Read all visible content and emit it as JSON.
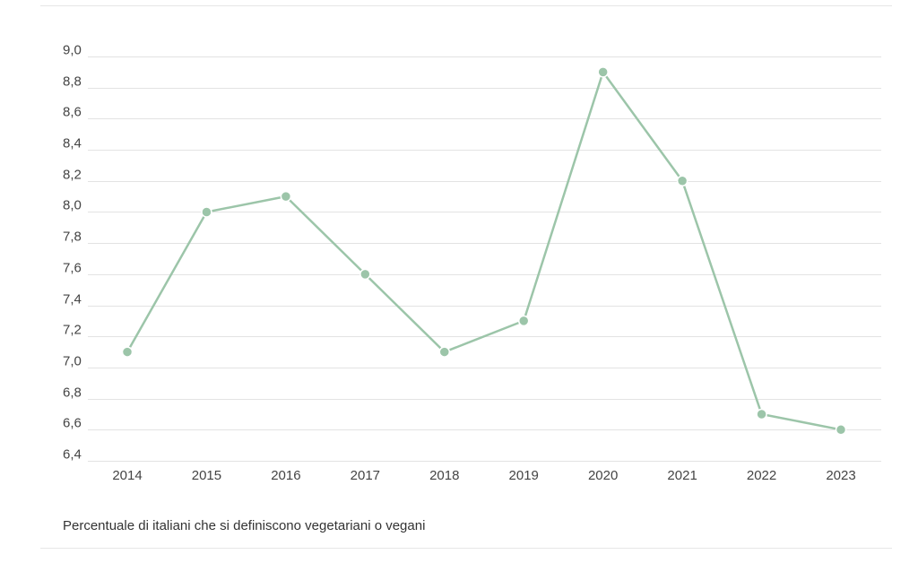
{
  "chart_data": {
    "type": "line",
    "title": "",
    "caption": "Percentuale di italiani che si definiscono vegetariani o vegani",
    "xlabel": "",
    "ylabel": "",
    "categories": [
      "2014",
      "2015",
      "2016",
      "2017",
      "2018",
      "2019",
      "2020",
      "2021",
      "2022",
      "2023"
    ],
    "series": [
      {
        "values": [
          7.1,
          8.0,
          8.1,
          7.6,
          7.1,
          7.3,
          8.9,
          8.2,
          6.7,
          6.6
        ]
      }
    ],
    "ylim": [
      6.4,
      9.0
    ],
    "yticks": [
      "6,4",
      "6,6",
      "6,8",
      "7,0",
      "7,2",
      "7,4",
      "7,6",
      "7,8",
      "8,0",
      "8,2",
      "8,4",
      "8,6",
      "8,8",
      "9,0"
    ],
    "grid": true,
    "legend": "none",
    "colors": {
      "line": "#9cc5a9",
      "marker": "#9cc5a9",
      "grid": "#e3e3e3",
      "text": "#444444"
    }
  }
}
